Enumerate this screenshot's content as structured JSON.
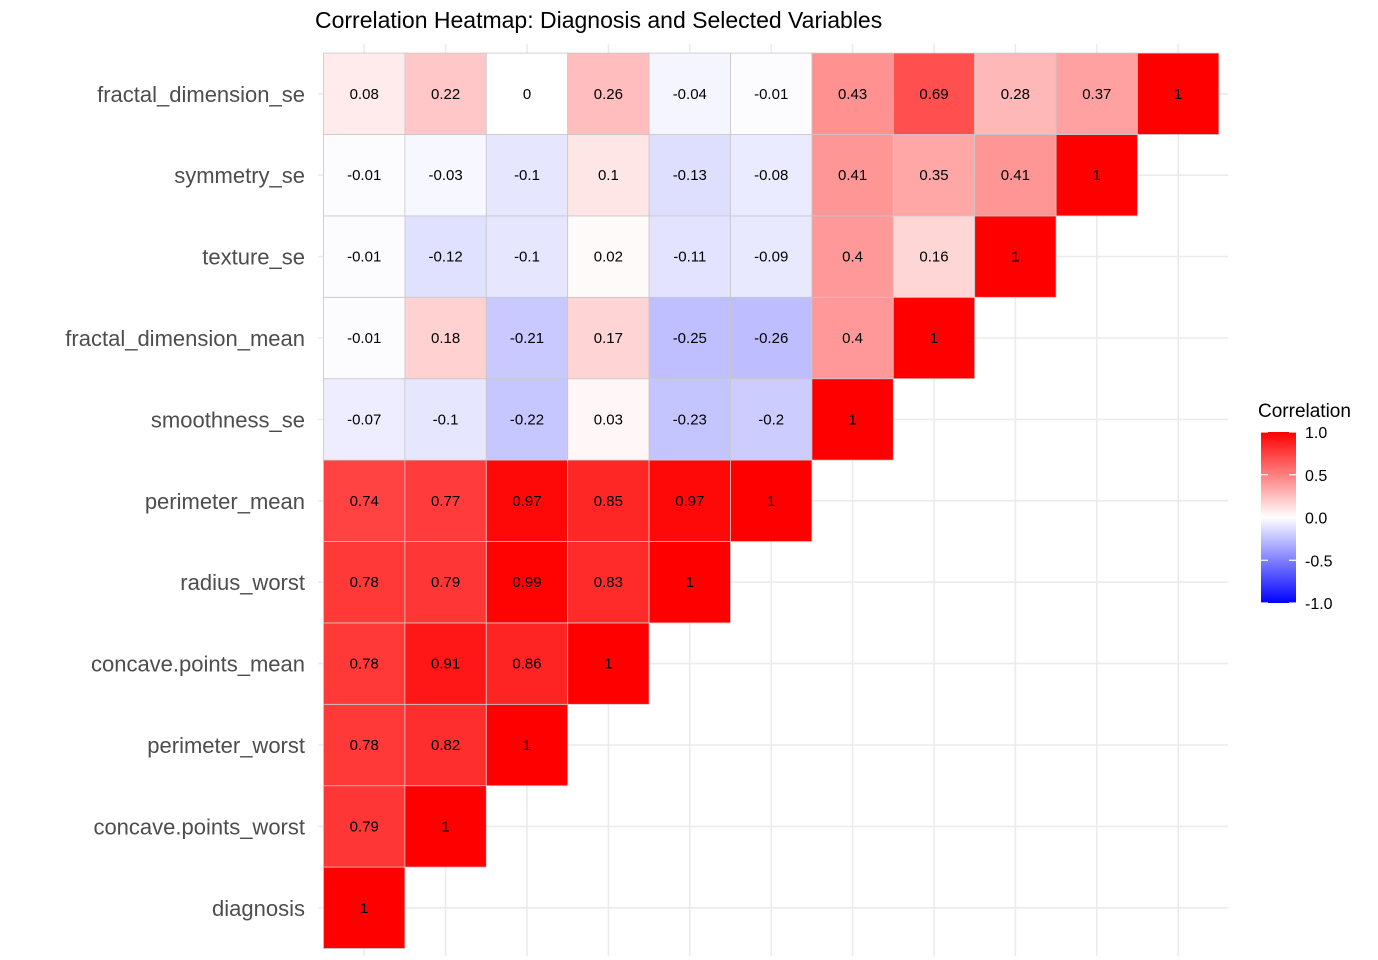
{
  "chart_data": {
    "type": "heatmap",
    "title": "Correlation Heatmap: Diagnosis and Selected Variables",
    "xlabel": "",
    "ylabel": "",
    "variables": [
      "diagnosis",
      "concave.points_worst",
      "perimeter_worst",
      "concave.points_mean",
      "radius_worst",
      "perimeter_mean",
      "smoothness_se",
      "fractal_dimension_mean",
      "texture_se",
      "symmetry_se",
      "fractal_dimension_se"
    ],
    "matrix_lower_triangle_by_row": [
      [
        1
      ],
      [
        0.79,
        1
      ],
      [
        0.78,
        0.82,
        1
      ],
      [
        0.78,
        0.91,
        0.86,
        1
      ],
      [
        0.78,
        0.79,
        0.99,
        0.83,
        1
      ],
      [
        0.74,
        0.77,
        0.97,
        0.85,
        0.97,
        1
      ],
      [
        -0.07,
        -0.1,
        -0.22,
        0.03,
        -0.23,
        -0.2,
        1
      ],
      [
        -0.01,
        0.18,
        -0.21,
        0.17,
        -0.25,
        -0.26,
        0.4,
        1
      ],
      [
        -0.01,
        -0.12,
        -0.1,
        0.02,
        -0.11,
        -0.09,
        0.4,
        0.16,
        1
      ],
      [
        -0.01,
        -0.03,
        -0.1,
        0.1,
        -0.13,
        -0.08,
        0.41,
        0.35,
        0.41,
        1
      ],
      [
        0.08,
        0.22,
        0,
        0.26,
        -0.04,
        -0.01,
        0.43,
        0.69,
        0.28,
        0.37,
        1
      ]
    ],
    "color_scale": {
      "low": "#0000FF",
      "mid": "#FFFFFF",
      "high": "#FF0000",
      "limits": [
        -1,
        1
      ]
    },
    "legend": {
      "title": "Correlation",
      "ticks": [
        1.0,
        0.5,
        0.0,
        -0.5,
        -1.0
      ],
      "tick_labels": [
        "1.0",
        "0.5",
        "0.0",
        "-0.5",
        "-1.0"
      ],
      "placement": "right"
    },
    "grid": true
  }
}
